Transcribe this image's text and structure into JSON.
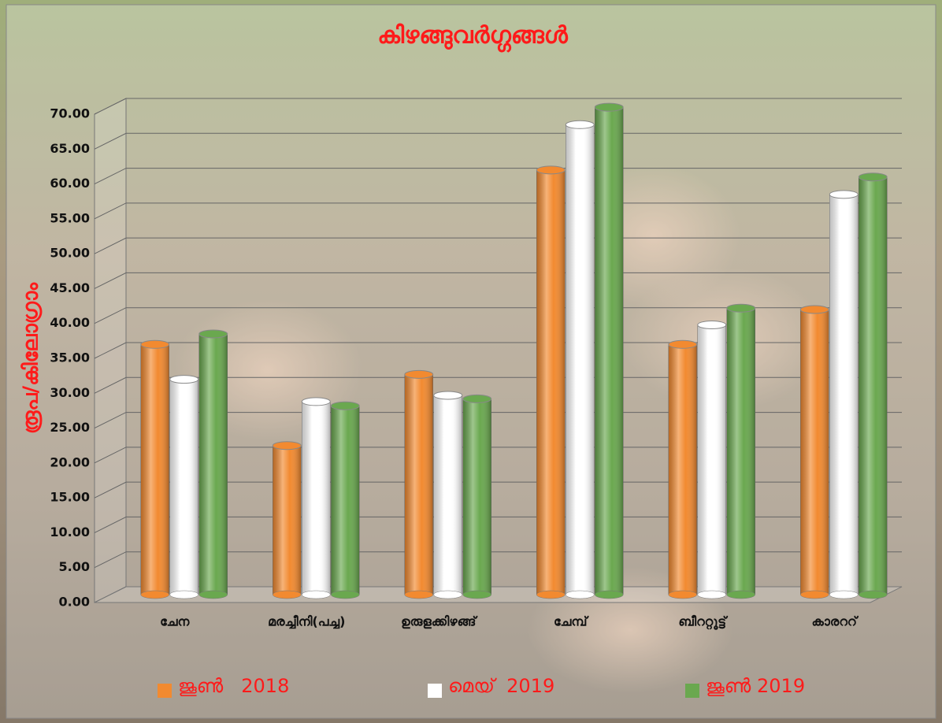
{
  "chart_data": {
    "type": "bar3d",
    "title": "കിഴങ്ങുവർഗ്ഗങ്ങൾ",
    "y_label": "രൂപ/കിലോഗ്രാം",
    "categories": [
      "ചേന",
      "മരച്ചീനി(പച്ച)",
      "ഉരുളക്കിഴങ്ങ്",
      "ചേമ്പ്",
      "ബീററ്റൂട്ട്",
      "കാരററ്"
    ],
    "series": [
      {
        "name": "ജൂൺ   2018",
        "color": "#f28a30",
        "values": [
          37,
          22.5,
          32.7,
          62,
          37,
          42
        ]
      },
      {
        "name": "മെയ്  2019",
        "color": "#ffffff",
        "values": [
          32,
          28.8,
          29.7,
          68.5,
          39.8,
          58.5
        ]
      },
      {
        "name": "ജൂൺ 2019",
        "color": "#6aa84f",
        "values": [
          38.5,
          28.2,
          29.2,
          71,
          42.2,
          61
        ]
      }
    ],
    "ylim": [
      0,
      70
    ],
    "yticks": [
      {
        "value": 0,
        "label": "0.00"
      },
      {
        "value": 5,
        "label": "5.00"
      },
      {
        "value": 10,
        "label": "10.00"
      },
      {
        "value": 15,
        "label": "15.00"
      },
      {
        "value": 20,
        "label": "20.00"
      },
      {
        "value": 25,
        "label": "25.00"
      },
      {
        "value": 30,
        "label": "30.00"
      },
      {
        "value": 35,
        "label": "35.00"
      },
      {
        "value": 40,
        "label": "40.00"
      },
      {
        "value": 45,
        "label": "45.00"
      },
      {
        "value": 50,
        "label": "50.00"
      },
      {
        "value": 55,
        "label": "55.00"
      },
      {
        "value": 60,
        "label": "60.00"
      },
      {
        "value": 65,
        "label": "65.00"
      },
      {
        "value": 70,
        "label": "70.00"
      }
    ],
    "grid": true
  }
}
